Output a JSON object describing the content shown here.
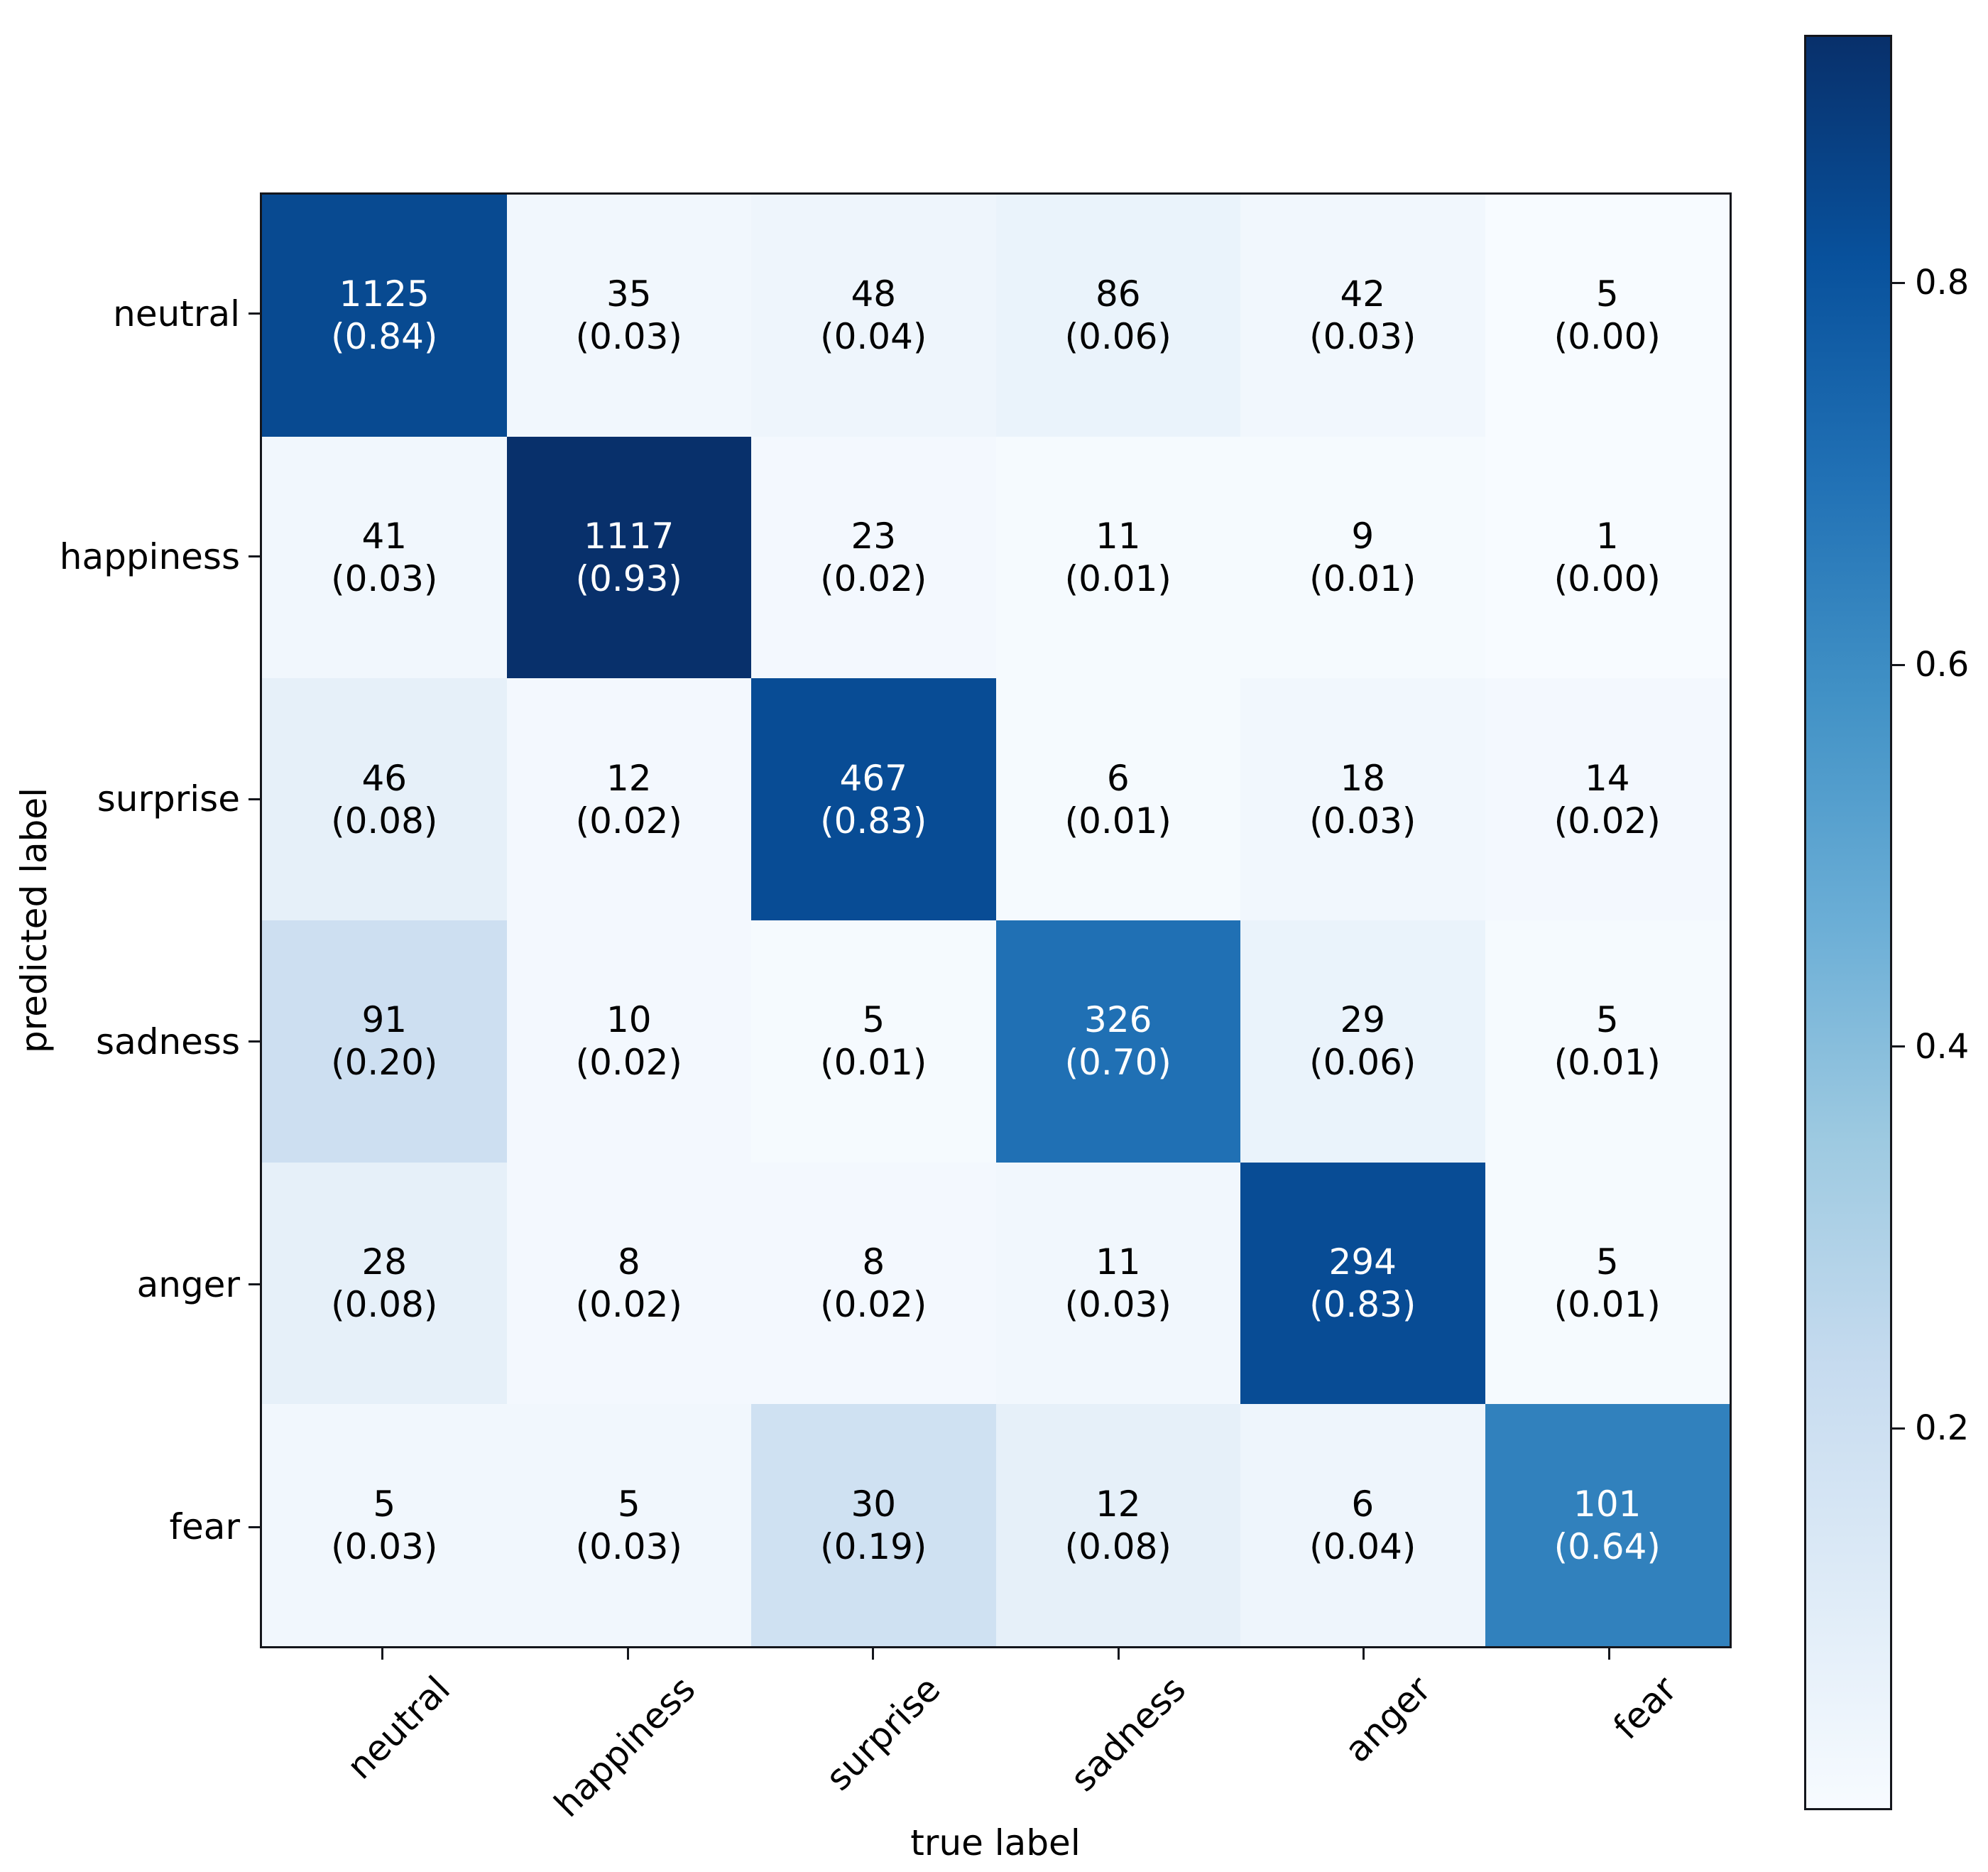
{
  "chart_data": {
    "type": "heatmap",
    "title": "",
    "xlabel": "true label",
    "ylabel": "predicted label",
    "x_categories": [
      "neutral",
      "happiness",
      "surprise",
      "sadness",
      "anger",
      "fear"
    ],
    "y_categories": [
      "neutral",
      "happiness",
      "surprise",
      "sadness",
      "anger",
      "fear"
    ],
    "counts": [
      [
        1125,
        35,
        48,
        86,
        42,
        5
      ],
      [
        41,
        1117,
        23,
        11,
        9,
        1
      ],
      [
        46,
        12,
        467,
        6,
        18,
        14
      ],
      [
        91,
        10,
        5,
        326,
        29,
        5
      ],
      [
        28,
        8,
        8,
        11,
        294,
        5
      ],
      [
        5,
        5,
        30,
        12,
        6,
        101
      ]
    ],
    "fractions": [
      [
        "0.84",
        "0.03",
        "0.04",
        "0.06",
        "0.03",
        "0.00"
      ],
      [
        "0.03",
        "0.93",
        "0.02",
        "0.01",
        "0.01",
        "0.00"
      ],
      [
        "0.08",
        "0.02",
        "0.83",
        "0.01",
        "0.03",
        "0.02"
      ],
      [
        "0.20",
        "0.02",
        "0.01",
        "0.70",
        "0.06",
        "0.01"
      ],
      [
        "0.08",
        "0.02",
        "0.02",
        "0.03",
        "0.83",
        "0.01"
      ],
      [
        "0.03",
        "0.03",
        "0.19",
        "0.08",
        "0.04",
        "0.64"
      ]
    ],
    "cell_label_format": "count newline (fraction)",
    "vmin": 0.0,
    "vmax": 0.93,
    "colormap": {
      "name": "Blues",
      "stops": [
        "#f7fbff",
        "#deebf7",
        "#c6dbef",
        "#9ecae1",
        "#6baed6",
        "#4292c6",
        "#2171b5",
        "#08519c",
        "#08306b"
      ]
    },
    "colorbar": {
      "position": "right",
      "tick_values": [
        0.8,
        0.6,
        0.4,
        0.2
      ],
      "tick_labels": [
        "0.8",
        "0.6",
        "0.4",
        "0.2"
      ]
    },
    "colors": {
      "cell_text_dark": "#000000",
      "cell_text_light": "#ffffff",
      "axis": "#14161c",
      "background": "#ffffff"
    },
    "grid": false,
    "legend": "none"
  }
}
